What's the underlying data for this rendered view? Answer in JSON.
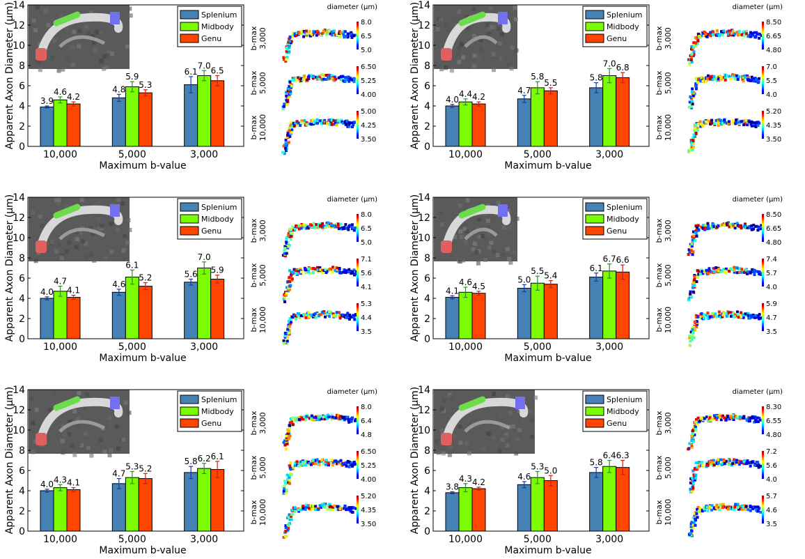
{
  "chart_data": [
    {
      "type": "bar",
      "categories": [
        "10,000",
        "5,000",
        "3,000"
      ],
      "xlabel": "Maximum b-value",
      "ylabel": "Apparent Axon Diameter (µm)",
      "ylim": [
        0,
        14
      ],
      "yticks": [
        0,
        2,
        4,
        6,
        8,
        10,
        12,
        14
      ],
      "legend": "top-right",
      "series": [
        {
          "name": "Splenium",
          "color": "#4682b4",
          "values": [
            3.9,
            4.8,
            6.1
          ],
          "labels": [
            "3.9",
            "4.8",
            "6.1"
          ],
          "err": [
            0.1,
            0.35,
            0.8
          ]
        },
        {
          "name": "Midbody",
          "color": "#7cfc00",
          "values": [
            4.6,
            5.9,
            7.0
          ],
          "labels": [
            "4.6",
            "5.9",
            "7.0"
          ],
          "err": [
            0.3,
            0.5,
            0.5
          ]
        },
        {
          "name": "Genu",
          "color": "#ff4500",
          "values": [
            4.2,
            5.3,
            6.5
          ],
          "labels": [
            "4.2",
            "5.3",
            "6.5"
          ],
          "err": [
            0.2,
            0.3,
            0.5
          ]
        }
      ],
      "maps": {
        "title": "diameter (µm)",
        "rows": [
          {
            "label": "b-max",
            "value": "3,000",
            "ticks": [
              "8.0",
              "6.5",
              "5.0"
            ]
          },
          {
            "label": "b-max",
            "value": "5,000",
            "ticks": [
              "6.50",
              "5.25",
              "4.00"
            ]
          },
          {
            "label": "b-max",
            "value": "10,000",
            "ticks": [
              "5.00",
              "4.25",
              "3.50"
            ]
          }
        ]
      }
    },
    {
      "type": "bar",
      "categories": [
        "10,000",
        "5,000",
        "3,000"
      ],
      "xlabel": "Maximum b-value",
      "ylabel": "Apparent Axon Diameter (µm)",
      "ylim": [
        0,
        14
      ],
      "yticks": [
        0,
        2,
        4,
        6,
        8,
        10,
        12,
        14
      ],
      "legend": "top-right",
      "series": [
        {
          "name": "Splenium",
          "color": "#4682b4",
          "values": [
            4.0,
            4.7,
            5.8
          ],
          "labels": [
            "4.0",
            "4.7",
            "5.8"
          ],
          "err": [
            0.15,
            0.35,
            0.5
          ]
        },
        {
          "name": "Midbody",
          "color": "#7cfc00",
          "values": [
            4.4,
            5.8,
            7.0
          ],
          "labels": [
            "4.4",
            "5.8",
            "7.0"
          ],
          "err": [
            0.3,
            0.6,
            0.7
          ]
        },
        {
          "name": "Genu",
          "color": "#ff4500",
          "values": [
            4.2,
            5.5,
            6.8
          ],
          "labels": [
            "4.2",
            "5.5",
            "6.8"
          ],
          "err": [
            0.2,
            0.3,
            0.5
          ]
        }
      ],
      "maps": {
        "title": "diameter (µm)",
        "rows": [
          {
            "label": "b-max",
            "value": "3,000",
            "ticks": [
              "8.50",
              "6.65",
              "4.80"
            ]
          },
          {
            "label": "b-max",
            "value": "5,000",
            "ticks": [
              "7.0",
              "5.5",
              "4.0"
            ]
          },
          {
            "label": "b-max",
            "value": "10,000",
            "ticks": [
              "5.20",
              "4.35",
              "3.50"
            ]
          }
        ]
      }
    },
    {
      "type": "bar",
      "categories": [
        "10,000",
        "5,000",
        "3,000"
      ],
      "xlabel": "Maximum b-value",
      "ylabel": "Apparent Axon Diameter (µm)",
      "ylim": [
        0,
        14
      ],
      "yticks": [
        0,
        2,
        4,
        6,
        8,
        10,
        12,
        14
      ],
      "legend": "top-right",
      "series": [
        {
          "name": "Splenium",
          "color": "#4682b4",
          "values": [
            4.0,
            4.6,
            5.6
          ],
          "labels": [
            "4.0",
            "4.6",
            "5.6"
          ],
          "err": [
            0.15,
            0.3,
            0.3
          ]
        },
        {
          "name": "Midbody",
          "color": "#7cfc00",
          "values": [
            4.7,
            6.1,
            7.0
          ],
          "labels": [
            "4.7",
            "6.1",
            "7.0"
          ],
          "err": [
            0.5,
            0.7,
            0.6
          ]
        },
        {
          "name": "Genu",
          "color": "#ff4500",
          "values": [
            4.1,
            5.2,
            5.9
          ],
          "labels": [
            "4.1",
            "5.2",
            "5.9"
          ],
          "err": [
            0.2,
            0.35,
            0.4
          ]
        }
      ],
      "maps": {
        "title": "diameter (µm)",
        "rows": [
          {
            "label": "b-max",
            "value": "3,000",
            "ticks": [
              "8.0",
              "6.5",
              "5.0"
            ]
          },
          {
            "label": "b-max",
            "value": "5,000",
            "ticks": [
              "7.1",
              "5.6",
              "4.1"
            ]
          },
          {
            "label": "b-max",
            "value": "10,000",
            "ticks": [
              "5.3",
              "4.4",
              "3.5"
            ]
          }
        ]
      }
    },
    {
      "type": "bar",
      "categories": [
        "10,000",
        "5,000",
        "3,000"
      ],
      "xlabel": "Maximum b-value",
      "ylabel": "Apparent Axon Diameter (µm)",
      "ylim": [
        0,
        14
      ],
      "yticks": [
        0,
        2,
        4,
        6,
        8,
        10,
        12,
        14
      ],
      "legend": "top-right",
      "series": [
        {
          "name": "Splenium",
          "color": "#4682b4",
          "values": [
            4.1,
            5.0,
            6.1
          ],
          "labels": [
            "4.1",
            "5.0",
            "6.1"
          ],
          "err": [
            0.15,
            0.35,
            0.4
          ]
        },
        {
          "name": "Midbody",
          "color": "#7cfc00",
          "values": [
            4.6,
            5.5,
            6.7
          ],
          "labels": [
            "4.6",
            "5.5",
            "6.7"
          ],
          "err": [
            0.5,
            0.7,
            0.7
          ]
        },
        {
          "name": "Genu",
          "color": "#ff4500",
          "values": [
            4.5,
            5.4,
            6.6
          ],
          "labels": [
            "4.5",
            "5.4",
            "6.6"
          ],
          "err": [
            0.2,
            0.35,
            0.7
          ]
        }
      ],
      "maps": {
        "title": "diameter (µm)",
        "rows": [
          {
            "label": "b-max",
            "value": "3,000",
            "ticks": [
              "8.50",
              "6.65",
              "4.80"
            ]
          },
          {
            "label": "b-max",
            "value": "5,000",
            "ticks": [
              "7.4",
              "5.7",
              "4.0"
            ]
          },
          {
            "label": "b-max",
            "value": "10,000",
            "ticks": [
              "5.9",
              "4.7",
              "3.5"
            ]
          }
        ]
      }
    },
    {
      "type": "bar",
      "categories": [
        "10,000",
        "5,000",
        "3,000"
      ],
      "xlabel": "Maximum b-value",
      "ylabel": "Apparent Axon Diameter (µm)",
      "ylim": [
        0,
        14
      ],
      "yticks": [
        0,
        2,
        4,
        6,
        8,
        10,
        12,
        14
      ],
      "legend": "top-right",
      "series": [
        {
          "name": "Splenium",
          "color": "#4682b4",
          "values": [
            4.0,
            4.7,
            5.8
          ],
          "labels": [
            "4.0",
            "4.7",
            "5.8"
          ],
          "err": [
            0.15,
            0.5,
            0.6
          ]
        },
        {
          "name": "Midbody",
          "color": "#7cfc00",
          "values": [
            4.3,
            5.3,
            6.2
          ],
          "labels": [
            "4.3",
            "5.3",
            "6.2"
          ],
          "err": [
            0.3,
            0.6,
            0.5
          ]
        },
        {
          "name": "Genu",
          "color": "#ff4500",
          "values": [
            4.1,
            5.2,
            6.1
          ],
          "labels": [
            "4.1",
            "5.2",
            "6.1"
          ],
          "err": [
            0.2,
            0.5,
            0.8
          ]
        }
      ],
      "maps": {
        "title": "diameter (µm)",
        "rows": [
          {
            "label": "b-max",
            "value": "3,000",
            "ticks": [
              "8.0",
              "6.4",
              "4.8"
            ]
          },
          {
            "label": "b-max",
            "value": "5,000",
            "ticks": [
              "6.50",
              "5.25",
              "4.00"
            ]
          },
          {
            "label": "b-max",
            "value": "10,000",
            "ticks": [
              "5.20",
              "4.35",
              "3.50"
            ]
          }
        ]
      }
    },
    {
      "type": "bar",
      "categories": [
        "10,000",
        "5,000",
        "3,000"
      ],
      "xlabel": "Maximum b-value",
      "ylabel": "Apparent Axon Diameter (µm)",
      "ylim": [
        0,
        14
      ],
      "yticks": [
        0,
        2,
        4,
        6,
        8,
        10,
        12,
        14
      ],
      "legend": "top-right",
      "series": [
        {
          "name": "Splenium",
          "color": "#4682b4",
          "values": [
            3.8,
            4.6,
            5.8
          ],
          "labels": [
            "3.8",
            "4.6",
            "5.8"
          ],
          "err": [
            0.1,
            0.3,
            0.5
          ]
        },
        {
          "name": "Midbody",
          "color": "#7cfc00",
          "values": [
            4.3,
            5.3,
            6.4
          ],
          "labels": [
            "4.3",
            "5.3",
            "6.4"
          ],
          "err": [
            0.4,
            0.6,
            0.6
          ]
        },
        {
          "name": "Genu",
          "color": "#ff4500",
          "values": [
            4.2,
            5.0,
            6.3
          ],
          "labels": [
            "4.2",
            "5.0",
            "6.3"
          ],
          "err": [
            0.15,
            0.5,
            0.7
          ]
        }
      ],
      "maps": {
        "title": "diameter (µm)",
        "rows": [
          {
            "label": "b-max",
            "value": "3,000",
            "ticks": [
              "8.30",
              "6.55",
              "4.80"
            ]
          },
          {
            "label": "b-max",
            "value": "5,000",
            "ticks": [
              "7.2",
              "5.6",
              "4.0"
            ]
          },
          {
            "label": "b-max",
            "value": "10,000",
            "ticks": [
              "5.7",
              "4.6",
              "3.5"
            ]
          }
        ]
      }
    }
  ]
}
